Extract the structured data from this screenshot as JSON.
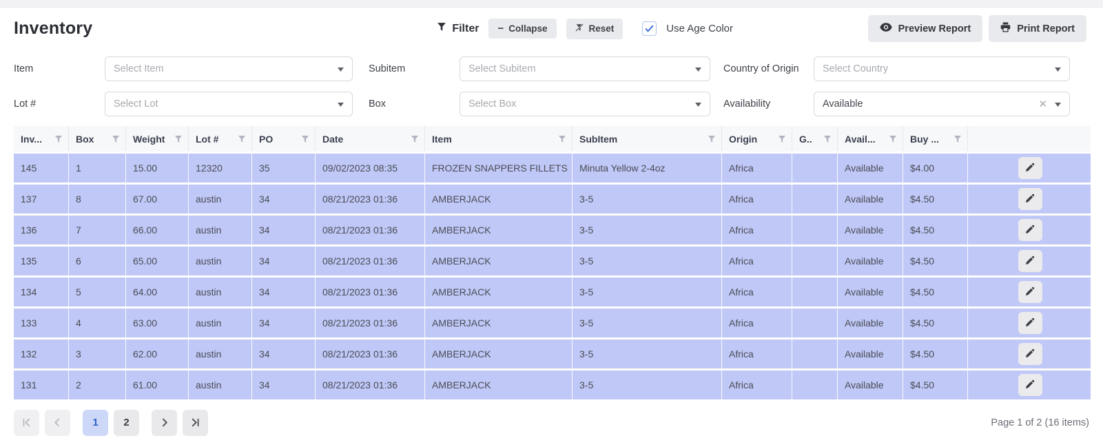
{
  "header": {
    "title": "Inventory",
    "filter_label": "Filter",
    "collapse_label": "Collapse",
    "reset_label": "Reset",
    "use_age_color_label": "Use Age Color",
    "use_age_color_checked": true,
    "preview_report_label": "Preview Report",
    "print_report_label": "Print Report"
  },
  "filters": [
    {
      "label": "Item",
      "placeholder": "Select Item",
      "value": "",
      "clearable": false
    },
    {
      "label": "Subitem",
      "placeholder": "Select Subitem",
      "value": "",
      "clearable": false
    },
    {
      "label": "Country of Origin",
      "placeholder": "Select Country",
      "value": "",
      "clearable": false
    },
    {
      "label": "Lot #",
      "placeholder": "Select Lot",
      "value": "",
      "clearable": false
    },
    {
      "label": "Box",
      "placeholder": "Select Box",
      "value": "",
      "clearable": false
    },
    {
      "label": "Availability",
      "placeholder": "",
      "value": "Available",
      "clearable": true
    }
  ],
  "table": {
    "columns": [
      "Inv...",
      "Box",
      "Weight",
      "Lot #",
      "PO",
      "Date",
      "Item",
      "SubItem",
      "Origin",
      "G..",
      "Avail...",
      "Buy ..."
    ],
    "rows": [
      [
        "145",
        "1",
        "15.00",
        "12320",
        "35",
        "09/02/2023 08:35",
        "FROZEN SNAPPERS FILLETS",
        "Minuta Yellow 2-4oz",
        "Africa",
        "",
        "Available",
        "$4.00"
      ],
      [
        "137",
        "8",
        "67.00",
        "austin",
        "34",
        "08/21/2023 01:36",
        "AMBERJACK",
        "3-5",
        "Africa",
        "",
        "Available",
        "$4.50"
      ],
      [
        "136",
        "7",
        "66.00",
        "austin",
        "34",
        "08/21/2023 01:36",
        "AMBERJACK",
        "3-5",
        "Africa",
        "",
        "Available",
        "$4.50"
      ],
      [
        "135",
        "6",
        "65.00",
        "austin",
        "34",
        "08/21/2023 01:36",
        "AMBERJACK",
        "3-5",
        "Africa",
        "",
        "Available",
        "$4.50"
      ],
      [
        "134",
        "5",
        "64.00",
        "austin",
        "34",
        "08/21/2023 01:36",
        "AMBERJACK",
        "3-5",
        "Africa",
        "",
        "Available",
        "$4.50"
      ],
      [
        "133",
        "4",
        "63.00",
        "austin",
        "34",
        "08/21/2023 01:36",
        "AMBERJACK",
        "3-5",
        "Africa",
        "",
        "Available",
        "$4.50"
      ],
      [
        "132",
        "3",
        "62.00",
        "austin",
        "34",
        "08/21/2023 01:36",
        "AMBERJACK",
        "3-5",
        "Africa",
        "",
        "Available",
        "$4.50"
      ],
      [
        "131",
        "2",
        "61.00",
        "austin",
        "34",
        "08/21/2023 01:36",
        "AMBERJACK",
        "3-5",
        "Africa",
        "",
        "Available",
        "$4.50"
      ]
    ]
  },
  "pagination": {
    "pages": [
      "1",
      "2"
    ],
    "active_page": "1",
    "summary": "Page 1 of 2 (16 items)"
  },
  "icons": {
    "toolbar_filter": "funnel-icon",
    "collapse": "minus-icon",
    "reset": "funnel-slash-icon",
    "preview": "eye-icon",
    "print": "printer-icon",
    "column_filter": "funnel-icon",
    "select_open": "chevron-down-icon",
    "select_clear": "x-icon",
    "row_edit": "pencil-icon",
    "pager": [
      "first-page-icon",
      "prev-page-icon",
      "next-page-icon",
      "last-page-icon"
    ]
  },
  "colors": {
    "row_background": "#c0c8f7",
    "accent_blue": "#2e5fc7",
    "button_gray": "#e9eaed"
  }
}
